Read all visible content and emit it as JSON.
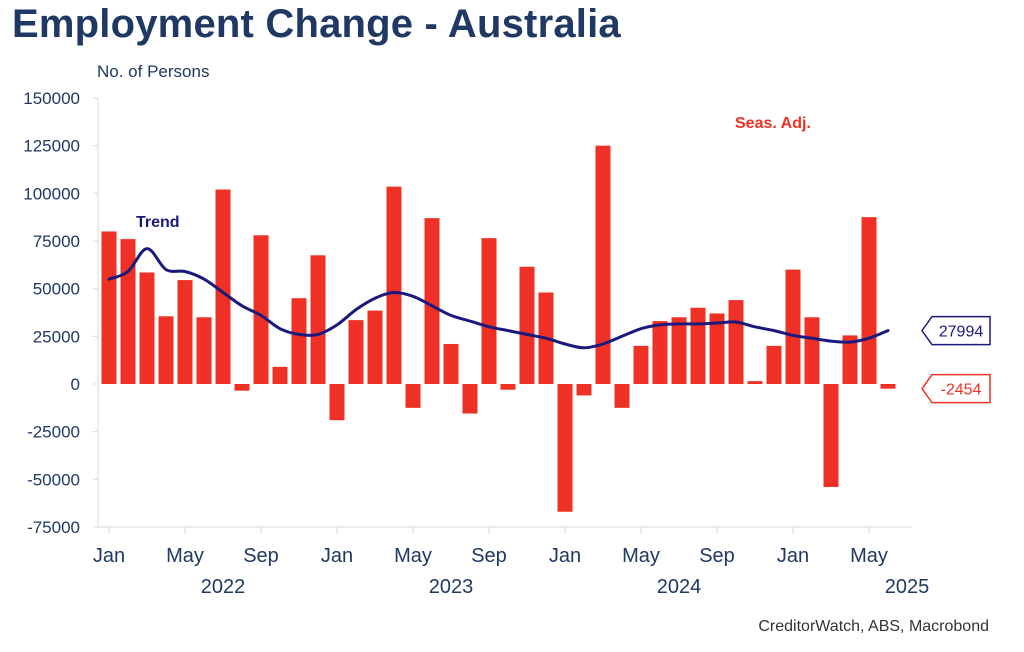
{
  "title": "Employment Change - Australia",
  "source": "CreditorWatch, ABS, Macrobond",
  "chart_data": {
    "type": "bar",
    "ylabel": "No. of Persons",
    "ylim": [
      -75000,
      150000
    ],
    "yticks": [
      "150000",
      "125000",
      "100000",
      "75000",
      "50000",
      "25000",
      "0",
      "-25000",
      "-50000",
      "-75000"
    ],
    "xticks": [
      {
        "label": "Jan",
        "year": "2022",
        "month_index": 0
      },
      {
        "label": "May",
        "year": "",
        "month_index": 4
      },
      {
        "label": "Sep",
        "year": "",
        "month_index": 8
      },
      {
        "label": "Jan",
        "year": "",
        "month_index": 12
      },
      {
        "label": "May",
        "year": "2023",
        "month_index": 16
      },
      {
        "label": "Sep",
        "year": "",
        "month_index": 20
      },
      {
        "label": "Jan",
        "year": "",
        "month_index": 24
      },
      {
        "label": "May",
        "year": "2024",
        "month_index": 28
      },
      {
        "label": "Sep",
        "year": "",
        "month_index": 32
      },
      {
        "label": "Jan",
        "year": "",
        "month_index": 36
      },
      {
        "label": "May",
        "year": "2025",
        "month_index": 40
      }
    ],
    "series": [
      {
        "name": "Seas. Adj.",
        "kind": "bar",
        "color": "#ee3124",
        "values": [
          80000,
          76000,
          58500,
          35500,
          54500,
          35000,
          102000,
          -3500,
          78000,
          9000,
          45000,
          67500,
          -19000,
          33500,
          38500,
          103500,
          -12500,
          87000,
          21000,
          -15500,
          76500,
          -3000,
          61500,
          48000,
          -67000,
          -6000,
          125000,
          -12500,
          20000,
          33000,
          35000,
          40000,
          37000,
          44000,
          1500,
          20000,
          60000,
          35000,
          -54000,
          25500,
          87500,
          -2454
        ],
        "last_value_label": "-2454"
      },
      {
        "name": "Trend",
        "kind": "line",
        "color": "#1a1a7e",
        "values": [
          55000,
          59000,
          71000,
          60000,
          59000,
          55000,
          48000,
          41000,
          36000,
          29000,
          26000,
          26000,
          31000,
          39000,
          45000,
          48000,
          46000,
          41000,
          36000,
          33000,
          30000,
          28000,
          26000,
          24000,
          21000,
          19000,
          21000,
          25000,
          29000,
          31000,
          31500,
          31500,
          32000,
          32500,
          30000,
          28000,
          25500,
          24000,
          22500,
          22000,
          24000,
          27994
        ],
        "last_value_label": "27994"
      }
    ],
    "annotations": [
      {
        "text": "Trend",
        "series": "Trend"
      },
      {
        "text": "Seas. Adj.",
        "series": "Seas. Adj."
      }
    ],
    "grid": false,
    "legend": "none"
  }
}
